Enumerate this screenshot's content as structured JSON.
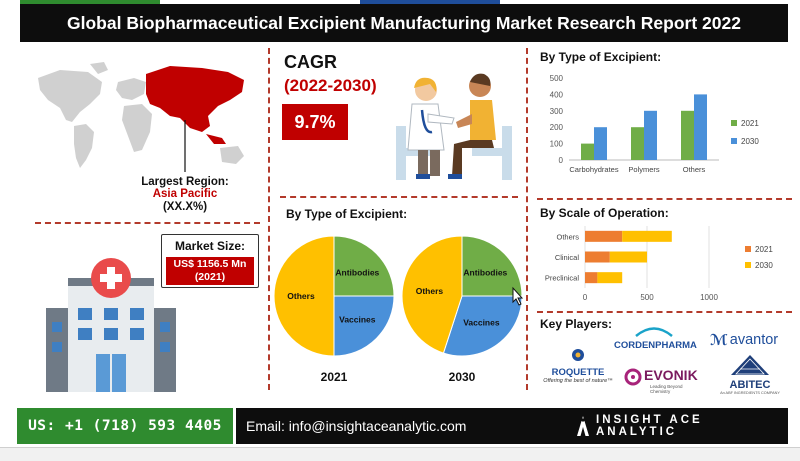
{
  "title": "Global Biopharmaceutical Excipient Manufacturing Market Research Report 2022",
  "colors": {
    "accent_red": "#c00000",
    "dark": "#0d0d0d",
    "green": "#2f8b2f",
    "pie_yellow": "#ffc000",
    "pie_green": "#70ad47",
    "pie_blue": "#4a90d9",
    "bar_orange": "#ed7d31"
  },
  "region": {
    "label": "Largest Region:",
    "value": "Asia Pacific",
    "share": "(XX.X%)"
  },
  "cagr": {
    "title": "CAGR",
    "period": "(2022-2030)",
    "value": "9.7%"
  },
  "market_size": {
    "label": "Market Size:",
    "value": "US$ 1156.5 Mn",
    "year": "(2021)"
  },
  "pies_section": {
    "title": "By Type of Excipient:"
  },
  "bars_section": {
    "title": "By Type of Excipient:"
  },
  "hbars_section": {
    "title": "By Scale of Operation:"
  },
  "key_players": {
    "title": "Key Players:",
    "logos": [
      {
        "name": "cordenpharma",
        "text": "CORDENPHARMA"
      },
      {
        "name": "avantor",
        "text": "avantor",
        "mark": "ℳ"
      },
      {
        "name": "roquette",
        "text": "ROQUETTE",
        "tagline": "Offering the best of nature™"
      },
      {
        "name": "evonik",
        "text": "EVONIK",
        "tagline": "Leading Beyond Chemistry"
      },
      {
        "name": "abitec",
        "text": "ABITEC",
        "tagline": "An ABF INGREDIENTS COMPANY"
      }
    ]
  },
  "footer": {
    "phone": "US: +1 (718) 593 4405",
    "email": "Email: info@insightaceanalytic.com",
    "brand": "INSIGHT ACE ANALYTIC"
  },
  "chart_data": [
    {
      "type": "bar",
      "title": "By Type of Excipient:",
      "categories": [
        "Carbohydrates",
        "Polymers",
        "Others"
      ],
      "series": [
        {
          "name": "2021",
          "color": "#70ad47",
          "values": [
            100,
            200,
            300
          ]
        },
        {
          "name": "2030",
          "color": "#4a90d9",
          "values": [
            200,
            300,
            400
          ]
        }
      ],
      "ylim": [
        0,
        500
      ],
      "yticks": [
        0,
        100,
        200,
        300,
        400,
        500
      ],
      "legend": "right",
      "grid": false
    },
    {
      "type": "bar",
      "orientation": "horizontal",
      "title": "By Scale of Operation:",
      "categories": [
        "Others",
        "Clinical",
        "Preclinical"
      ],
      "series": [
        {
          "name": "2021",
          "color": "#ed7d31",
          "values": [
            300,
            200,
            100
          ]
        },
        {
          "name": "2030",
          "color": "#ffc000",
          "values": [
            400,
            300,
            200
          ]
        }
      ],
      "stacked": true,
      "xlim": [
        0,
        1000
      ],
      "xticks": [
        0,
        500,
        1000
      ],
      "legend": "right",
      "grid": true
    },
    {
      "type": "pie",
      "title": "2021",
      "slices": [
        {
          "label": "Antibodies",
          "value": 25,
          "color": "#70ad47"
        },
        {
          "label": "Vaccines",
          "value": 25,
          "color": "#4a90d9"
        },
        {
          "label": "Others",
          "value": 50,
          "color": "#ffc000"
        }
      ]
    },
    {
      "type": "pie",
      "title": "2030",
      "slices": [
        {
          "label": "Antibodies",
          "value": 25,
          "color": "#70ad47"
        },
        {
          "label": "Vaccines",
          "value": 30,
          "color": "#4a90d9"
        },
        {
          "label": "Others",
          "value": 45,
          "color": "#ffc000"
        }
      ]
    }
  ]
}
